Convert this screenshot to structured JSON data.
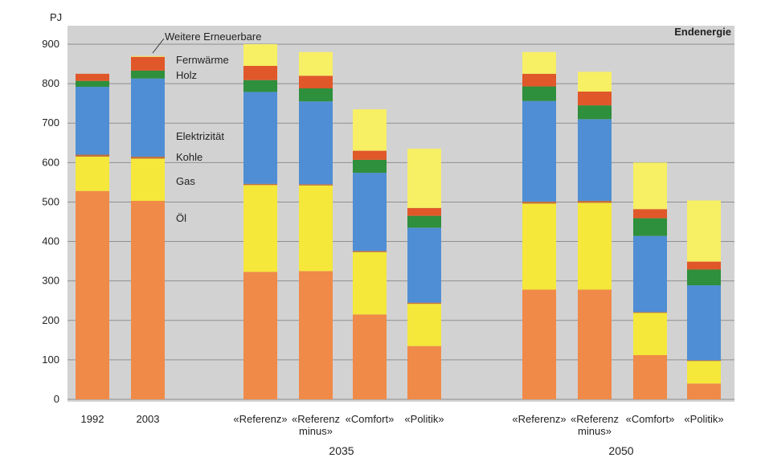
{
  "chart_data": {
    "type": "bar",
    "stacked": true,
    "title": "Endenergie",
    "ylabel": "PJ",
    "ylim": [
      0,
      900
    ],
    "yticks": [
      0,
      100,
      200,
      300,
      400,
      500,
      600,
      700,
      800,
      900
    ],
    "grid": true,
    "legend": "inline-annotations",
    "groups": [
      {
        "label": "",
        "categories": [
          [
            "1992"
          ],
          [
            "2003"
          ]
        ]
      },
      {
        "label": "2035",
        "categories": [
          [
            "«Referenz»"
          ],
          [
            "«Referenz",
            "minus»"
          ],
          [
            "«Comfort»"
          ],
          [
            "«Politik»"
          ]
        ]
      },
      {
        "label": "2050",
        "categories": [
          [
            "«Referenz»"
          ],
          [
            "«Referenz",
            "minus»"
          ],
          [
            "«Comfort»"
          ],
          [
            "«Politik»"
          ]
        ]
      }
    ],
    "series": [
      {
        "name": "Öl",
        "color": "#f08a48",
        "values": [
          528,
          503,
          323,
          325,
          215,
          135,
          278,
          278,
          112,
          40
        ]
      },
      {
        "name": "Gas",
        "color": "#f5e83a",
        "values": [
          87,
          107,
          220,
          217,
          158,
          107,
          218,
          220,
          107,
          57
        ]
      },
      {
        "name": "Kohle",
        "color": "#c2703a",
        "values": [
          5,
          5,
          3,
          3,
          3,
          3,
          5,
          5,
          2,
          2
        ]
      },
      {
        "name": "Elektrizität",
        "color": "#4f8ed4",
        "values": [
          172,
          198,
          233,
          210,
          198,
          190,
          255,
          207,
          193,
          190
        ]
      },
      {
        "name": "Holz",
        "color": "#2e8f3c",
        "values": [
          15,
          20,
          30,
          33,
          33,
          30,
          37,
          35,
          45,
          40
        ]
      },
      {
        "name": "Fernwärme",
        "color": "#e0572a",
        "values": [
          18,
          35,
          36,
          32,
          23,
          20,
          32,
          35,
          23,
          20
        ]
      },
      {
        "name": "Weitere Erneuerbare",
        "color": "#f7ef64",
        "values": [
          0,
          2,
          55,
          60,
          105,
          150,
          55,
          50,
          118,
          155
        ]
      }
    ],
    "annotations": [
      {
        "label": "Weitere Erneuerbare",
        "series": "Weitere Erneuerbare"
      },
      {
        "label": "Fernwärme",
        "series": "Fernwärme"
      },
      {
        "label": "Holz",
        "series": "Holz"
      },
      {
        "label": "Elektrizität",
        "series": "Elektrizität"
      },
      {
        "label": "Kohle",
        "series": "Kohle"
      },
      {
        "label": "Gas",
        "series": "Gas"
      },
      {
        "label": "Öl",
        "series": "Öl"
      }
    ]
  }
}
